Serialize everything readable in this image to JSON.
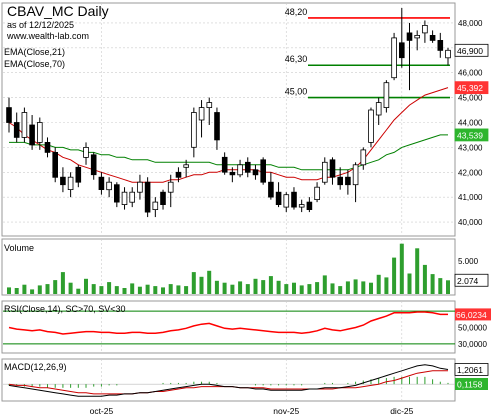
{
  "header": {
    "title": "CBAV_MC Daily",
    "as_of": "as of 12/12/2025",
    "site": "www.wealth-lab.com",
    "ema21_label": "EMA(Close,21)",
    "ema70_label": "EMA(Close,70)"
  },
  "price_pane": {
    "hlines": [
      {
        "label": "48,20",
        "value": 48.2,
        "color": "#ff0000"
      },
      {
        "label": "46,30",
        "value": 46.3,
        "color": "#008000"
      },
      {
        "label": "45,00",
        "value": 45.0,
        "color": "#008000"
      }
    ],
    "axis_ticks": [
      "48,000",
      "47,000",
      "46,000",
      "45,000",
      "44,000",
      "43,000",
      "42,000",
      "41,000",
      "40,000"
    ],
    "last_price": "46,900",
    "ema21_value": "45,392",
    "ema70_value": "43,539",
    "colors": {
      "ema21": "#cc0000",
      "ema70": "#008000",
      "last_price_bg": "#ffffff",
      "ema21_bg": "#ff3333",
      "ema70_bg": "#2db52d"
    }
  },
  "volume_pane": {
    "label": "Volume",
    "axis_ticks": [
      "5.000"
    ],
    "last_value": "2.074",
    "color": "#2e9e2e"
  },
  "rsi_pane": {
    "label": "RSI(Close,14), SC>70, SV<30",
    "axis_ticks": [
      "50,0000",
      "30,0000"
    ],
    "last_value": "66,0234",
    "colors": {
      "line": "#ff0000",
      "band": "#008000"
    }
  },
  "macd_pane": {
    "label": "MACD(12,26,9)",
    "last_value": "1,2061",
    "signal_value": "0,1158",
    "colors": {
      "macd": "#000000",
      "signal": "#cc0000",
      "hist": "#2e9e2e"
    }
  },
  "x_axis": {
    "labels": [
      "oct-25",
      "nov-25",
      "dic-25"
    ]
  },
  "chart_data": [
    {
      "type": "candlestick",
      "title": "CBAV_MC Daily",
      "ylim": [
        39.6,
        48.6
      ],
      "series": [
        {
          "name": "EMA(Close,21)",
          "values": [
            44.0,
            43.8,
            43.5,
            43.3,
            43.1,
            42.9,
            42.8,
            42.6,
            42.5,
            42.3,
            42.2,
            42.1,
            42.0,
            41.9,
            41.8,
            41.7,
            41.6,
            41.6,
            41.6,
            41.6,
            41.6,
            41.7,
            41.7,
            41.8,
            41.9,
            41.9,
            42.0,
            42.0,
            42.1,
            42.1,
            42.1,
            42.1,
            42.1,
            42.0,
            42.0,
            41.9,
            41.8,
            41.8,
            41.7,
            41.7,
            41.7,
            41.8,
            41.8,
            41.9,
            42.0,
            42.2,
            42.5,
            42.9,
            43.3,
            43.7,
            44.1,
            44.4,
            44.7,
            44.9,
            45.1,
            45.2,
            45.3,
            45.4
          ]
        },
        {
          "name": "EMA(Close,70)",
          "values": [
            43.2,
            43.2,
            43.2,
            43.1,
            43.1,
            43.1,
            43.0,
            43.0,
            42.9,
            42.9,
            42.8,
            42.8,
            42.7,
            42.7,
            42.6,
            42.6,
            42.5,
            42.5,
            42.5,
            42.4,
            42.4,
            42.4,
            42.4,
            42.4,
            42.4,
            42.4,
            42.4,
            42.3,
            42.3,
            42.3,
            42.3,
            42.3,
            42.3,
            42.3,
            42.3,
            42.2,
            42.2,
            42.2,
            42.1,
            42.1,
            42.1,
            42.1,
            42.1,
            42.1,
            42.1,
            42.2,
            42.3,
            42.4,
            42.5,
            42.7,
            42.8,
            43.0,
            43.1,
            43.2,
            43.3,
            43.4,
            43.5,
            43.5
          ]
        }
      ],
      "ohlc": [
        [
          44.6,
          45.0,
          43.6,
          44.0
        ],
        [
          44.0,
          44.4,
          43.2,
          43.4
        ],
        [
          43.4,
          44.6,
          43.2,
          44.4
        ],
        [
          43.9,
          44.3,
          42.9,
          43.1
        ],
        [
          43.2,
          44.2,
          42.9,
          44.0
        ],
        [
          43.2,
          43.4,
          42.6,
          42.8
        ],
        [
          42.8,
          43.0,
          41.6,
          41.8
        ],
        [
          41.8,
          42.2,
          41.2,
          41.5
        ],
        [
          41.3,
          42.0,
          41.0,
          41.8
        ],
        [
          42.2,
          42.3,
          41.4,
          41.6
        ],
        [
          42.6,
          43.2,
          42.3,
          43.0
        ],
        [
          42.7,
          42.8,
          41.7,
          41.9
        ],
        [
          41.8,
          42.0,
          41.1,
          41.3
        ],
        [
          41.3,
          41.8,
          41.0,
          41.6
        ],
        [
          41.5,
          41.6,
          40.6,
          40.8
        ],
        [
          40.7,
          41.4,
          40.5,
          41.2
        ],
        [
          40.8,
          41.4,
          40.6,
          41.2
        ],
        [
          41.2,
          41.9,
          40.9,
          41.6
        ],
        [
          41.6,
          41.8,
          40.2,
          40.4
        ],
        [
          40.5,
          41.0,
          40.2,
          40.8
        ],
        [
          41.2,
          41.3,
          40.5,
          40.7
        ],
        [
          41.2,
          41.9,
          40.6,
          41.6
        ],
        [
          42.0,
          42.2,
          41.6,
          41.8
        ],
        [
          42.2,
          42.5,
          41.8,
          42.3
        ],
        [
          43.0,
          44.6,
          42.6,
          44.4
        ],
        [
          44.1,
          44.9,
          43.4,
          44.6
        ],
        [
          44.6,
          45.0,
          43.9,
          44.8
        ],
        [
          44.4,
          44.6,
          42.9,
          43.3
        ],
        [
          42.6,
          42.8,
          41.9,
          42.0
        ],
        [
          42.0,
          42.2,
          41.6,
          41.9
        ],
        [
          41.9,
          42.5,
          41.8,
          42.3
        ],
        [
          42.4,
          42.6,
          41.8,
          42.0
        ],
        [
          42.1,
          42.3,
          41.7,
          41.9
        ],
        [
          42.5,
          42.6,
          41.5,
          41.6
        ],
        [
          41.6,
          42.0,
          40.9,
          41.0
        ],
        [
          41.2,
          41.6,
          40.6,
          40.7
        ],
        [
          40.6,
          41.2,
          40.4,
          41.1
        ],
        [
          41.2,
          41.4,
          40.5,
          40.6
        ],
        [
          40.6,
          40.9,
          40.4,
          40.7
        ],
        [
          40.8,
          41.0,
          40.4,
          40.5
        ],
        [
          40.9,
          41.6,
          40.8,
          41.4
        ],
        [
          41.6,
          42.6,
          41.5,
          42.4
        ],
        [
          42.5,
          42.6,
          41.5,
          41.8
        ],
        [
          41.8,
          42.2,
          41.3,
          41.5
        ],
        [
          41.8,
          42.1,
          41.1,
          41.5
        ],
        [
          41.5,
          42.4,
          40.8,
          42.3
        ],
        [
          42.3,
          43.0,
          42.1,
          42.9
        ],
        [
          43.2,
          44.6,
          43.0,
          44.5
        ],
        [
          44.3,
          45.0,
          43.9,
          44.8
        ],
        [
          44.6,
          45.7,
          44.4,
          45.6
        ],
        [
          45.8,
          47.6,
          45.7,
          47.4
        ],
        [
          47.2,
          48.6,
          46.2,
          46.6
        ],
        [
          47.6,
          48.0,
          45.3,
          47.3
        ],
        [
          47.4,
          47.7,
          46.9,
          47.5
        ],
        [
          47.6,
          48.1,
          47.2,
          47.9
        ],
        [
          47.5,
          47.7,
          47.2,
          47.3
        ],
        [
          47.3,
          47.6,
          46.6,
          46.9
        ],
        [
          46.6,
          47.0,
          46.3,
          46.9
        ]
      ]
    },
    {
      "type": "bar",
      "title": "Volume",
      "values": [
        1000,
        900,
        1400,
        700,
        1300,
        1500,
        2100,
        3300,
        1700,
        800,
        2300,
        1500,
        1200,
        1800,
        1200,
        900,
        1600,
        1100,
        1400,
        1200,
        1000,
        1500,
        1300,
        1200,
        3300,
        2600,
        3500,
        2000,
        1700,
        1400,
        1900,
        1500,
        2300,
        2100,
        2700,
        2000,
        1500,
        1700,
        1300,
        1500,
        1800,
        2800,
        1600,
        1200,
        1900,
        2200,
        1900,
        1700,
        2900,
        2500,
        5500,
        7600,
        3100,
        6900,
        4400,
        3000,
        2400,
        2074
      ]
    },
    {
      "type": "line",
      "title": "RSI(Close,14), SC>70, SV<30",
      "ylim": [
        20,
        80
      ],
      "values": [
        50,
        48,
        47,
        46,
        47,
        45,
        44,
        42,
        43,
        44,
        45,
        45,
        44,
        44,
        43,
        43,
        44,
        44,
        43,
        43,
        44,
        46,
        47,
        49,
        52,
        54,
        55,
        52,
        49,
        48,
        49,
        48,
        47,
        46,
        45,
        44,
        44,
        44,
        43,
        44,
        46,
        49,
        47,
        46,
        48,
        50,
        53,
        58,
        61,
        64,
        68,
        68,
        68,
        69,
        69,
        68,
        66,
        66.0234
      ]
    },
    {
      "type": "line",
      "title": "MACD(12,26,9)",
      "series": [
        {
          "name": "MACD(12,26,9)",
          "values": [
            -0.1,
            -0.2,
            -0.3,
            -0.4,
            -0.5,
            -0.6,
            -0.7,
            -0.8,
            -0.9,
            -1.0,
            -1.0,
            -1.0,
            -1.0,
            -0.9,
            -0.9,
            -0.8,
            -0.8,
            -0.7,
            -0.7,
            -0.6,
            -0.5,
            -0.4,
            -0.3,
            -0.2,
            -0.1,
            0.0,
            0.0,
            -0.1,
            -0.2,
            -0.2,
            -0.3,
            -0.3,
            -0.4,
            -0.4,
            -0.5,
            -0.5,
            -0.5,
            -0.5,
            -0.5,
            -0.4,
            -0.4,
            -0.3,
            -0.3,
            -0.3,
            -0.2,
            -0.1,
            0.1,
            0.3,
            0.5,
            0.7,
            0.9,
            1.1,
            1.3,
            1.5,
            1.6,
            1.5,
            1.3,
            1.2061
          ]
        },
        {
          "values": [
            0.0,
            -0.1,
            -0.1,
            -0.2,
            -0.3,
            -0.3,
            -0.4,
            -0.5,
            -0.6,
            -0.7,
            -0.7,
            -0.8,
            -0.8,
            -0.8,
            -0.8,
            -0.8,
            -0.8,
            -0.7,
            -0.7,
            -0.6,
            -0.6,
            -0.5,
            -0.4,
            -0.3,
            -0.3,
            -0.2,
            -0.2,
            -0.2,
            -0.2,
            -0.2,
            -0.3,
            -0.3,
            -0.3,
            -0.3,
            -0.4,
            -0.4,
            -0.4,
            -0.4,
            -0.4,
            -0.4,
            -0.4,
            -0.4,
            -0.4,
            -0.3,
            -0.3,
            -0.3,
            -0.2,
            -0.1,
            0.0,
            0.2,
            0.3,
            0.5,
            0.7,
            0.9,
            1.0,
            1.1,
            1.1,
            1.1
          ]
        }
      ]
    }
  ]
}
